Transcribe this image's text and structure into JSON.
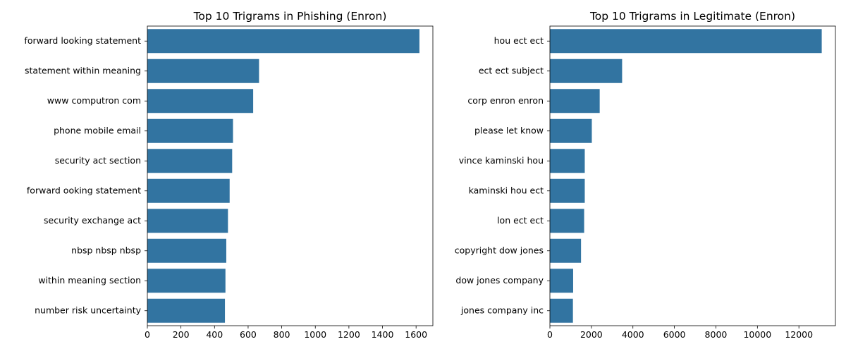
{
  "chart_data": [
    {
      "type": "bar",
      "orientation": "horizontal",
      "title": "Top 10 Trigrams in Phishing (Enron)",
      "xlabel": "",
      "ylabel": "",
      "categories": [
        "forward looking statement",
        "statement within meaning",
        "www computron com",
        "phone mobile email",
        "security act section",
        "forward ooking statement",
        "security exchange act",
        "nbsp nbsp nbsp",
        "within meaning section",
        "number risk uncertainty"
      ],
      "values": [
        1620,
        665,
        630,
        510,
        505,
        490,
        480,
        470,
        465,
        462
      ],
      "xlim": [
        0,
        1700
      ],
      "xticks": [
        0,
        200,
        400,
        600,
        800,
        1000,
        1200,
        1400,
        1600
      ],
      "grid": false,
      "color": "#3274a1"
    },
    {
      "type": "bar",
      "orientation": "horizontal",
      "title": "Top 10 Trigrams in Legitimate (Enron)",
      "xlabel": "",
      "ylabel": "",
      "categories": [
        "hou ect ect",
        "ect ect subject",
        "corp enron enron",
        "please let know",
        "vince kaminski hou",
        "kaminski hou ect",
        "lon ect ect",
        "copyright dow jones",
        "dow jones company",
        "jones company inc"
      ],
      "values": [
        13100,
        3480,
        2400,
        2020,
        1680,
        1680,
        1650,
        1500,
        1120,
        1110
      ],
      "xlim": [
        0,
        13760
      ],
      "xticks": [
        0,
        2000,
        4000,
        6000,
        8000,
        10000,
        12000
      ],
      "grid": false,
      "color": "#3274a1"
    }
  ]
}
